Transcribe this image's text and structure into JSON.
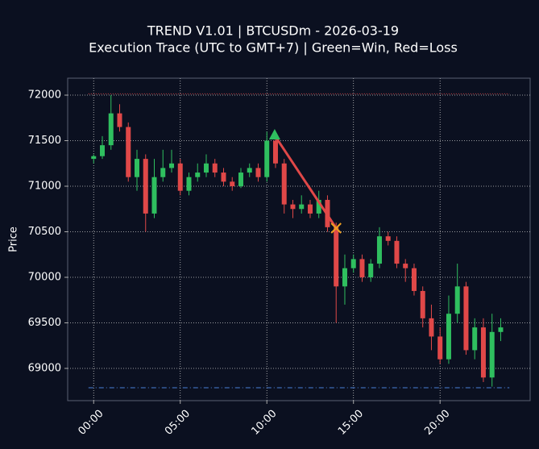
{
  "chart_data": {
    "type": "candlestick",
    "title": "TREND V1.01 | BTCUSDm - 2026-03-19",
    "subtitle": "Execution Trace (UTC to GMT+7) | Green=Win, Red=Loss",
    "y_label": "Price",
    "up_color": "#2fbf5f",
    "down_color": "#e04848",
    "x": [
      0,
      0.5,
      1,
      1.5,
      2,
      2.5,
      3,
      3.5,
      4,
      4.5,
      5,
      5.5,
      6,
      6.5,
      7,
      7.5,
      8,
      8.5,
      9,
      9.5,
      10,
      10.5,
      11,
      11.5,
      12,
      12.5,
      13,
      13.5,
      14,
      14.5,
      15,
      15.5,
      16,
      16.5,
      17,
      17.5,
      18,
      18.5,
      19,
      19.5,
      20,
      20.5,
      21,
      21.5,
      22,
      22.5,
      23,
      23.5
    ],
    "open": [
      71300,
      71330,
      71450,
      71800,
      71650,
      71100,
      71300,
      70700,
      71100,
      71200,
      71250,
      70950,
      71100,
      71150,
      71250,
      71150,
      71050,
      71000,
      71150,
      71200,
      71100,
      71500,
      71250,
      70800,
      70750,
      70800,
      70700,
      70850,
      70550,
      69900,
      70100,
      70200,
      70000,
      70150,
      70450,
      70400,
      70150,
      70100,
      69850,
      69550,
      69350,
      69100,
      69600,
      69900,
      69200,
      69450,
      68900,
      69400
    ],
    "high": [
      71350,
      71550,
      72000,
      71900,
      71700,
      71400,
      71350,
      71300,
      71400,
      71400,
      71300,
      71150,
      71250,
      71350,
      71300,
      71200,
      71100,
      71200,
      71250,
      71250,
      71600,
      71550,
      71300,
      70850,
      70900,
      70850,
      70950,
      70900,
      70600,
      70250,
      70250,
      70250,
      70200,
      70550,
      70500,
      70450,
      70200,
      70150,
      69900,
      69700,
      69450,
      69800,
      70150,
      69950,
      69550,
      69550,
      69600,
      69550
    ],
    "low": [
      71250,
      71300,
      71400,
      71600,
      71050,
      70950,
      70500,
      70650,
      71050,
      71150,
      70900,
      70900,
      71050,
      71100,
      71100,
      71000,
      70950,
      70980,
      71100,
      71050,
      71050,
      71200,
      70700,
      70650,
      70700,
      70650,
      70650,
      70500,
      69500,
      69700,
      70050,
      69950,
      69950,
      70100,
      70350,
      70100,
      69950,
      69800,
      69450,
      69200,
      69050,
      69050,
      69500,
      69150,
      69100,
      68850,
      68800,
      69300
    ],
    "close": [
      71330,
      71450,
      71800,
      71650,
      71100,
      71300,
      70700,
      71100,
      71200,
      71250,
      70950,
      71100,
      71150,
      71250,
      71150,
      71050,
      71000,
      71150,
      71200,
      71100,
      71500,
      71250,
      70800,
      70750,
      70800,
      70700,
      70850,
      70550,
      69900,
      70100,
      70200,
      70000,
      70150,
      70450,
      70400,
      70150,
      70100,
      69850,
      69550,
      69350,
      69100,
      69600,
      69900,
      69200,
      69450,
      68900,
      69400,
      69450
    ],
    "levels": [
      {
        "value": 72015,
        "color": "#e04848",
        "dash": "1 2"
      },
      {
        "value": 68788,
        "color": "#4a7fd8",
        "dash": "6 3 1 3"
      }
    ],
    "levels_x": [
      -0.3,
      24
    ],
    "trades": [
      {
        "entry_x": 10.45,
        "entry_price": 71558,
        "exit_x": 14.0,
        "exit_price": 70540,
        "line_color": "#e04848",
        "entry_color": "#2fbf5f",
        "exit_color": "#f0a020"
      }
    ],
    "xlim": [
      -1.5,
      25.2
    ],
    "ylim": [
      68646,
      72186
    ],
    "xticks": [
      {
        "value": 0,
        "label": "00:00"
      },
      {
        "value": 5,
        "label": "05:00"
      },
      {
        "value": 10,
        "label": "10:00"
      },
      {
        "value": 15,
        "label": "15:00"
      },
      {
        "value": 20,
        "label": "20:00"
      }
    ],
    "yticks": [
      69000,
      69500,
      70000,
      70500,
      71000,
      71500,
      72000
    ],
    "grid": true
  }
}
